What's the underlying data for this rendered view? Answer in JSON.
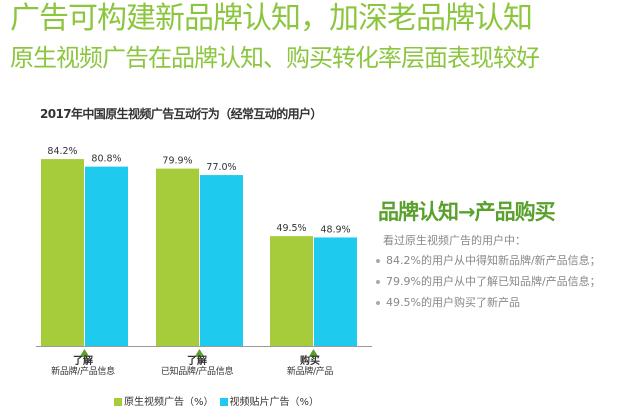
{
  "header": {
    "title": "广告可构建新品牌认知，加深老品牌认知",
    "subtitle": "原生视频广告在品牌认知、购买转化率层面表现较好"
  },
  "chart_data": {
    "type": "bar",
    "title": "2017年中国原生视频广告互动行为（经常互动的用户）",
    "categories": [
      {
        "line1": "了解",
        "line2": "新品牌/产品信息"
      },
      {
        "line1": "了解",
        "line2": "已知品牌/产品信息"
      },
      {
        "line1": "购买",
        "line2": "新品牌/产品"
      }
    ],
    "series": [
      {
        "name": "原生视频广告（%）",
        "color": "#a6cc3b",
        "values": [
          84.2,
          79.9,
          49.5
        ],
        "labels": [
          "84.2%",
          "79.9%",
          "49.5%"
        ]
      },
      {
        "name": "视频贴片广告（%）",
        "color": "#1fcaef",
        "values": [
          80.8,
          77.0,
          48.9
        ],
        "labels": [
          "80.8%",
          "77.0%",
          "48.9%"
        ]
      }
    ],
    "ylim": [
      0,
      100
    ],
    "grid": false,
    "legend_position": "bottom"
  },
  "side_panel": {
    "heading": "品牌认知→产品购买",
    "intro": "看过原生视频广告的用户中：",
    "bullets": [
      "84.2%的用户从中得知新品牌/新产品信息；",
      "79.9%的用户从中了解已知品牌/产品信息；",
      "49.5%的用户购买了新产品"
    ]
  },
  "colors": {
    "accent_green": "#8cc63f",
    "heading_green": "#5aa02c",
    "triangle_green": "#5aa02c",
    "bar_green": "#a6cc3b",
    "bar_cyan": "#1fcaef"
  }
}
